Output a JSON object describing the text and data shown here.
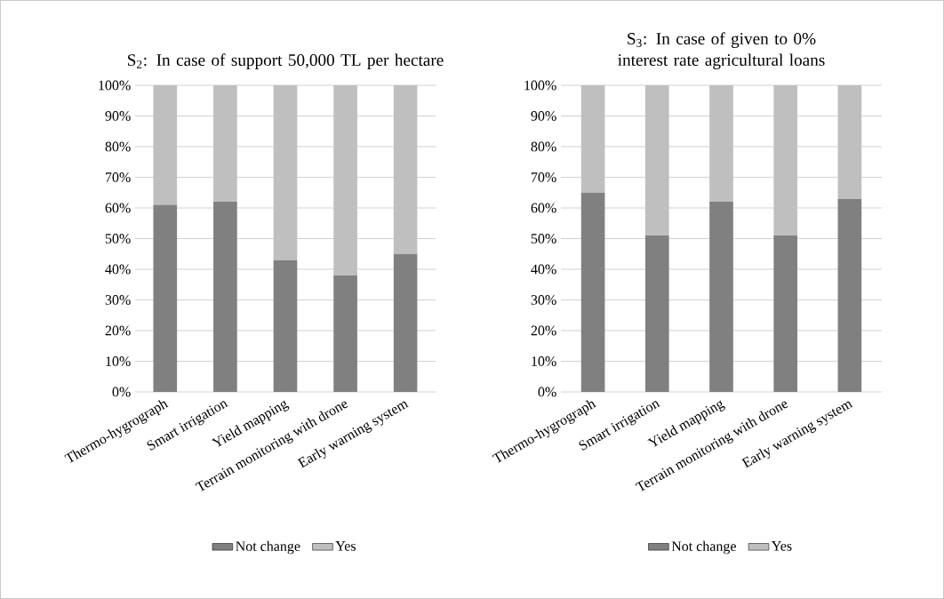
{
  "chart_data": [
    {
      "type": "bar",
      "stacked": true,
      "title": "S$_{2}$: In case of support 50,000 TL per hectare",
      "categories": [
        "Thermo-hygrograph",
        "Smart irrigation",
        "Yield mapping",
        "Terrain monitoring with drone",
        "Early warning system"
      ],
      "series": [
        {
          "name": "Not change",
          "color": "#808080",
          "values": [
            61,
            62,
            43,
            38,
            45
          ]
        },
        {
          "name": "Yes",
          "color": "#bfbfbf",
          "values": [
            39,
            38,
            57,
            62,
            55
          ]
        }
      ],
      "ylim": [
        0,
        100
      ],
      "yticks": [
        {
          "value": 0,
          "label": "0%"
        },
        {
          "value": 10,
          "label": "10%"
        },
        {
          "value": 20,
          "label": "20%"
        },
        {
          "value": 30,
          "label": "30%"
        },
        {
          "value": 40,
          "label": "40%"
        },
        {
          "value": 50,
          "label": "50%"
        },
        {
          "value": 60,
          "label": "60%"
        },
        {
          "value": 70,
          "label": "70%"
        },
        {
          "value": 80,
          "label": "80%"
        },
        {
          "value": 90,
          "label": "90%"
        },
        {
          "value": 100,
          "label": "100%"
        }
      ],
      "grid": "y",
      "legend": "bottom"
    },
    {
      "type": "bar",
      "stacked": true,
      "title": "S$_{3}$: In case of given to 0% interest rate agricultural loans",
      "categories": [
        "Thermo-hygrograph",
        "Smart irrigation",
        "Yield mapping",
        "Terrain monitoring with drone",
        "Early warning system"
      ],
      "series": [
        {
          "name": "Not change",
          "color": "#808080",
          "values": [
            65,
            51,
            62,
            51,
            63
          ]
        },
        {
          "name": "Yes",
          "color": "#bfbfbf",
          "values": [
            35,
            49,
            38,
            49,
            37
          ]
        }
      ],
      "ylim": [
        0,
        100
      ],
      "yticks": [
        {
          "value": 0,
          "label": "0%"
        },
        {
          "value": 10,
          "label": "10%"
        },
        {
          "value": 20,
          "label": "20%"
        },
        {
          "value": 30,
          "label": "30%"
        },
        {
          "value": 40,
          "label": "40%"
        },
        {
          "value": 50,
          "label": "50%"
        },
        {
          "value": 60,
          "label": "60%"
        },
        {
          "value": 70,
          "label": "70%"
        },
        {
          "value": 80,
          "label": "80%"
        },
        {
          "value": 90,
          "label": "90%"
        },
        {
          "value": 100,
          "label": "100%"
        }
      ],
      "grid": "y",
      "legend": "bottom"
    }
  ]
}
